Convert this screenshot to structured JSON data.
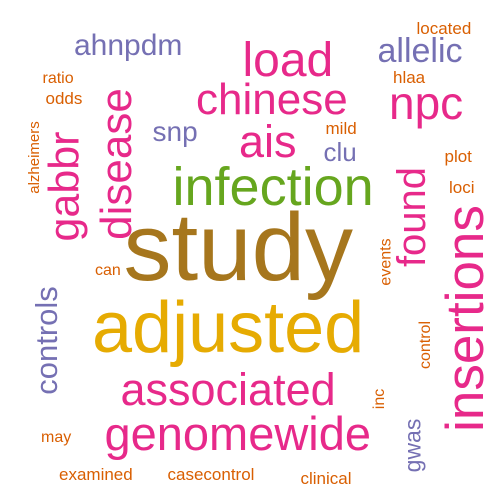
{
  "colors": {
    "background": "#ffffff",
    "brown": "#a6761d",
    "green": "#66a61e",
    "gold": "#e6ab02",
    "magenta": "#e7298a",
    "purple": "#7570b3",
    "orange": "#d95f02"
  },
  "words": [
    {
      "id": "study",
      "text": "study",
      "color": "#a6761d"
    },
    {
      "id": "adjusted",
      "text": "adjusted",
      "color": "#e6ab02"
    },
    {
      "id": "infection",
      "text": "infection",
      "color": "#66a61e"
    },
    {
      "id": "insertions",
      "text": "insertions",
      "color": "#e7298a"
    },
    {
      "id": "genomewide",
      "text": "genomewide",
      "color": "#e7298a"
    },
    {
      "id": "associated",
      "text": "associated",
      "color": "#e7298a"
    },
    {
      "id": "chinese",
      "text": "chinese",
      "color": "#e7298a"
    },
    {
      "id": "load",
      "text": "load",
      "color": "#e7298a"
    },
    {
      "id": "npc",
      "text": "npc",
      "color": "#e7298a"
    },
    {
      "id": "ais",
      "text": "ais",
      "color": "#e7298a"
    },
    {
      "id": "found",
      "text": "found",
      "color": "#e7298a"
    },
    {
      "id": "disease",
      "text": "disease",
      "color": "#e7298a"
    },
    {
      "id": "gabbr",
      "text": "gabbr",
      "color": "#e7298a"
    },
    {
      "id": "controls",
      "text": "controls",
      "color": "#7570b3"
    },
    {
      "id": "ahnpdm",
      "text": "ahnpdm",
      "color": "#7570b3"
    },
    {
      "id": "allelic",
      "text": "allelic",
      "color": "#7570b3"
    },
    {
      "id": "snp",
      "text": "snp",
      "color": "#7570b3"
    },
    {
      "id": "clu",
      "text": "clu",
      "color": "#7570b3"
    },
    {
      "id": "gwas",
      "text": "gwas",
      "color": "#7570b3"
    },
    {
      "id": "located",
      "text": "located",
      "color": "#d95f02"
    },
    {
      "id": "hlaa",
      "text": "hlaa",
      "color": "#d95f02"
    },
    {
      "id": "ratio",
      "text": "ratio",
      "color": "#d95f02"
    },
    {
      "id": "odds",
      "text": "odds",
      "color": "#d95f02"
    },
    {
      "id": "alzheimers",
      "text": "alzheimers",
      "color": "#d95f02"
    },
    {
      "id": "mild",
      "text": "mild",
      "color": "#d95f02"
    },
    {
      "id": "plot",
      "text": "plot",
      "color": "#d95f02"
    },
    {
      "id": "loci",
      "text": "loci",
      "color": "#d95f02"
    },
    {
      "id": "events",
      "text": "events",
      "color": "#d95f02"
    },
    {
      "id": "can",
      "text": "can",
      "color": "#d95f02"
    },
    {
      "id": "control",
      "text": "control",
      "color": "#d95f02"
    },
    {
      "id": "inc",
      "text": "inc",
      "color": "#d95f02"
    },
    {
      "id": "may",
      "text": "may",
      "color": "#d95f02"
    },
    {
      "id": "examined",
      "text": "examined",
      "color": "#d95f02"
    },
    {
      "id": "casecontrol",
      "text": "casecontrol",
      "color": "#d95f02"
    },
    {
      "id": "clinical",
      "text": "clinical",
      "color": "#d95f02"
    }
  ]
}
